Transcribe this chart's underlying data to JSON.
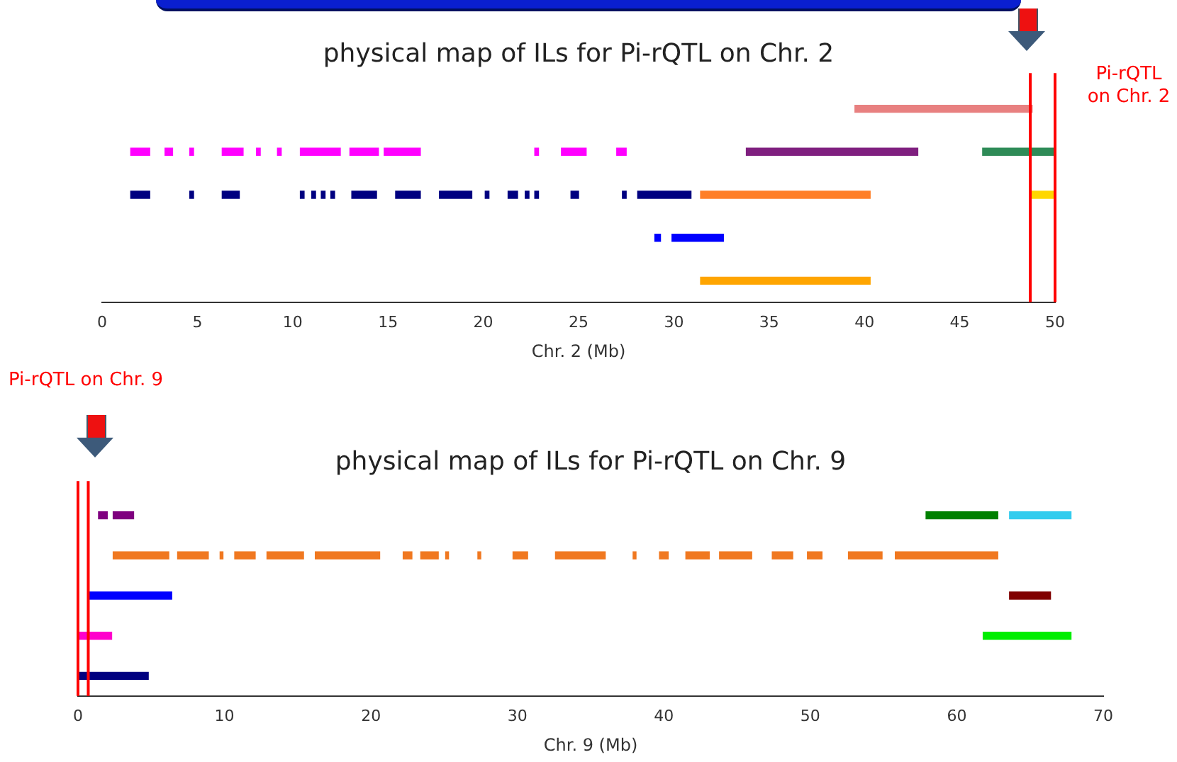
{
  "chart_data": [
    {
      "type": "bar",
      "orientation": "horizontal",
      "title": "physical map of ILs for Pi-rQTL on Chr. 2",
      "xlabel": "Chr. 2 (Mb)",
      "categories": [
        null,
        null,
        null,
        null,
        null
      ],
      "xlim": [
        0,
        50
      ],
      "xticks": [
        0,
        5,
        10,
        15,
        20,
        25,
        30,
        35,
        40,
        45,
        50
      ],
      "tick_labels": "x",
      "grid": false,
      "legend": false,
      "ref_lines": [
        {
          "axis": "x",
          "value": 48.7,
          "color": "#ff0000"
        },
        {
          "axis": "x",
          "value": 50,
          "color": "#ff0000"
        }
      ],
      "annotations": [
        "Pi-rQTL on Chr. 2"
      ],
      "series": [
        {
          "color": "#e88080",
          "base": [
            39.5,
            null,
            null,
            null,
            null
          ],
          "values": [
            9.3,
            null,
            null,
            null,
            null
          ]
        },
        {
          "color": "#ff00ff",
          "base": [
            null,
            1.5,
            null,
            null,
            null
          ],
          "values": [
            null,
            1.0,
            null,
            null,
            null
          ]
        },
        {
          "color": "#ff00ff",
          "base": [
            null,
            3.3,
            null,
            null,
            null
          ],
          "values": [
            null,
            0.4,
            null,
            null,
            null
          ]
        },
        {
          "color": "#ff00ff",
          "base": [
            null,
            4.6,
            null,
            null,
            null
          ],
          "values": [
            null,
            0.2,
            null,
            null,
            null
          ]
        },
        {
          "color": "#ff00ff",
          "base": [
            null,
            6.3,
            null,
            null,
            null
          ],
          "values": [
            null,
            1.1,
            null,
            null,
            null
          ]
        },
        {
          "color": "#ff00ff",
          "base": [
            null,
            8.1,
            null,
            null,
            null
          ],
          "values": [
            null,
            0.2,
            null,
            null,
            null
          ]
        },
        {
          "color": "#ff00ff",
          "base": [
            null,
            9.2,
            null,
            null,
            null
          ],
          "values": [
            null,
            0.2,
            null,
            null,
            null
          ]
        },
        {
          "color": "#ff00ff",
          "base": [
            null,
            10.4,
            null,
            null,
            null
          ],
          "values": [
            null,
            2.1,
            null,
            null,
            null
          ]
        },
        {
          "color": "#ff00ff",
          "base": [
            null,
            13.0,
            null,
            null,
            null
          ],
          "values": [
            null,
            1.5,
            null,
            null,
            null
          ]
        },
        {
          "color": "#ff00ff",
          "base": [
            null,
            14.8,
            null,
            null,
            null
          ],
          "values": [
            null,
            1.9,
            null,
            null,
            null
          ]
        },
        {
          "color": "#ff00ff",
          "base": [
            null,
            22.7,
            null,
            null,
            null
          ],
          "values": [
            null,
            0.2,
            null,
            null,
            null
          ]
        },
        {
          "color": "#ff00ff",
          "base": [
            null,
            24.1,
            null,
            null,
            null
          ],
          "values": [
            null,
            1.3,
            null,
            null,
            null
          ]
        },
        {
          "color": "#ff00ff",
          "base": [
            null,
            27.0,
            null,
            null,
            null
          ],
          "values": [
            null,
            0.5,
            null,
            null,
            null
          ]
        },
        {
          "color": "#7f1f7f",
          "base": [
            null,
            33.8,
            null,
            null,
            null
          ],
          "values": [
            null,
            9.0,
            null,
            null,
            null
          ]
        },
        {
          "color": "#2e8b57",
          "base": [
            null,
            46.2,
            null,
            null,
            null
          ],
          "values": [
            null,
            3.8,
            null,
            null,
            null
          ]
        },
        {
          "color": "#000080",
          "base": [
            null,
            null,
            1.5,
            null,
            null
          ],
          "values": [
            null,
            null,
            1.0,
            null,
            null
          ]
        },
        {
          "color": "#000080",
          "base": [
            null,
            null,
            4.6,
            null,
            null
          ],
          "values": [
            null,
            null,
            0.2,
            null,
            null
          ]
        },
        {
          "color": "#000080",
          "base": [
            null,
            null,
            6.3,
            null,
            null
          ],
          "values": [
            null,
            null,
            0.9,
            null,
            null
          ]
        },
        {
          "color": "#000080",
          "base": [
            null,
            null,
            10.4,
            null,
            null
          ],
          "values": [
            null,
            null,
            0.2,
            null,
            null
          ]
        },
        {
          "color": "#000080",
          "base": [
            null,
            null,
            11.0,
            null,
            null
          ],
          "values": [
            null,
            null,
            0.2,
            null,
            null
          ]
        },
        {
          "color": "#000080",
          "base": [
            null,
            null,
            11.5,
            null,
            null
          ],
          "values": [
            null,
            null,
            0.2,
            null,
            null
          ]
        },
        {
          "color": "#000080",
          "base": [
            null,
            null,
            12.0,
            null,
            null
          ],
          "values": [
            null,
            null,
            0.2,
            null,
            null
          ]
        },
        {
          "color": "#000080",
          "base": [
            null,
            null,
            13.1,
            null,
            null
          ],
          "values": [
            null,
            null,
            1.3,
            null,
            null
          ]
        },
        {
          "color": "#000080",
          "base": [
            null,
            null,
            15.4,
            null,
            null
          ],
          "values": [
            null,
            null,
            1.3,
            null,
            null
          ]
        },
        {
          "color": "#000080",
          "base": [
            null,
            null,
            17.7,
            null,
            null
          ],
          "values": [
            null,
            null,
            1.7,
            null,
            null
          ]
        },
        {
          "color": "#000080",
          "base": [
            null,
            null,
            20.1,
            null,
            null
          ],
          "values": [
            null,
            null,
            0.2,
            null,
            null
          ]
        },
        {
          "color": "#000080",
          "base": [
            null,
            null,
            21.3,
            null,
            null
          ],
          "values": [
            null,
            null,
            0.5,
            null,
            null
          ]
        },
        {
          "color": "#000080",
          "base": [
            null,
            null,
            22.2,
            null,
            null
          ],
          "values": [
            null,
            null,
            0.2,
            null,
            null
          ]
        },
        {
          "color": "#000080",
          "base": [
            null,
            null,
            22.7,
            null,
            null
          ],
          "values": [
            null,
            null,
            0.2,
            null,
            null
          ]
        },
        {
          "color": "#000080",
          "base": [
            null,
            null,
            24.6,
            null,
            null
          ],
          "values": [
            null,
            null,
            0.4,
            null,
            null
          ]
        },
        {
          "color": "#000080",
          "base": [
            null,
            null,
            27.3,
            null,
            null
          ],
          "values": [
            null,
            null,
            0.2,
            null,
            null
          ]
        },
        {
          "color": "#000080",
          "base": [
            null,
            null,
            28.1,
            null,
            null
          ],
          "values": [
            null,
            null,
            2.8,
            null,
            null
          ]
        },
        {
          "color": "#ff7f27",
          "base": [
            null,
            null,
            31.4,
            null,
            null
          ],
          "values": [
            null,
            null,
            8.9,
            null,
            null
          ]
        },
        {
          "color": "#ffd700",
          "base": [
            null,
            null,
            48.7,
            null,
            null
          ],
          "values": [
            null,
            null,
            1.3,
            null,
            null
          ]
        },
        {
          "color": "#0000ff",
          "base": [
            null,
            null,
            null,
            29.0,
            null
          ],
          "values": [
            null,
            null,
            null,
            0.3,
            null
          ]
        },
        {
          "color": "#0000ff",
          "base": [
            null,
            null,
            null,
            29.9,
            null
          ],
          "values": [
            null,
            null,
            null,
            2.7,
            null
          ]
        },
        {
          "color": "#ffa500",
          "base": [
            null,
            null,
            null,
            null,
            31.4
          ],
          "values": [
            null,
            null,
            null,
            null,
            8.9
          ]
        }
      ]
    },
    {
      "type": "bar",
      "orientation": "horizontal",
      "title": "physical map of ILs for Pi-rQTL on Chr. 9",
      "xlabel": "Chr. 9 (Mb)",
      "categories": [
        null,
        null,
        null,
        null,
        null
      ],
      "xlim": [
        0,
        70
      ],
      "xticks": [
        0,
        10,
        20,
        30,
        40,
        50,
        60,
        70
      ],
      "tick_labels": "x",
      "grid": false,
      "legend": false,
      "ref_lines": [
        {
          "axis": "x",
          "value": 0,
          "color": "#ff0000"
        },
        {
          "axis": "x",
          "value": 0.7,
          "color": "#ff0000"
        }
      ],
      "annotations": [
        "Pi-rQTL on Chr. 9"
      ],
      "series": [
        {
          "color": "#7f007f",
          "base": [
            1.4,
            null,
            null,
            null,
            null
          ],
          "values": [
            0.6,
            null,
            null,
            null,
            null
          ]
        },
        {
          "color": "#7f007f",
          "base": [
            2.4,
            null,
            null,
            null,
            null
          ],
          "values": [
            1.4,
            null,
            null,
            null,
            null
          ]
        },
        {
          "color": "#008000",
          "base": [
            57.9,
            null,
            null,
            null,
            null
          ],
          "values": [
            4.9,
            null,
            null,
            null,
            null
          ]
        },
        {
          "color": "#33ccee",
          "base": [
            63.6,
            null,
            null,
            null,
            null
          ],
          "values": [
            4.2,
            null,
            null,
            null,
            null
          ]
        },
        {
          "color": "#f07820",
          "base": [
            null,
            2.4,
            null,
            null,
            null
          ],
          "values": [
            null,
            3.8,
            null,
            null,
            null
          ]
        },
        {
          "color": "#f07820",
          "base": [
            null,
            6.8,
            null,
            null,
            null
          ],
          "values": [
            null,
            2.1,
            null,
            null,
            null
          ]
        },
        {
          "color": "#f07820",
          "base": [
            null,
            9.7,
            null,
            null,
            null
          ],
          "values": [
            null,
            0.2,
            null,
            null,
            null
          ]
        },
        {
          "color": "#f07820",
          "base": [
            null,
            10.7,
            null,
            null,
            null
          ],
          "values": [
            null,
            1.4,
            null,
            null,
            null
          ]
        },
        {
          "color": "#f07820",
          "base": [
            null,
            12.9,
            null,
            null,
            null
          ],
          "values": [
            null,
            2.5,
            null,
            null,
            null
          ]
        },
        {
          "color": "#f07820",
          "base": [
            null,
            16.2,
            null,
            null,
            null
          ],
          "values": [
            null,
            4.4,
            null,
            null,
            null
          ]
        },
        {
          "color": "#f07820",
          "base": [
            null,
            22.2,
            null,
            null,
            null
          ],
          "values": [
            null,
            0.6,
            null,
            null,
            null
          ]
        },
        {
          "color": "#f07820",
          "base": [
            null,
            23.4,
            null,
            null,
            null
          ],
          "values": [
            null,
            1.2,
            null,
            null,
            null
          ]
        },
        {
          "color": "#f07820",
          "base": [
            null,
            25.1,
            null,
            null,
            null
          ],
          "values": [
            null,
            0.2,
            null,
            null,
            null
          ]
        },
        {
          "color": "#f07820",
          "base": [
            null,
            27.3,
            null,
            null,
            null
          ],
          "values": [
            null,
            0.2,
            null,
            null,
            null
          ]
        },
        {
          "color": "#f07820",
          "base": [
            null,
            29.7,
            null,
            null,
            null
          ],
          "values": [
            null,
            1.0,
            null,
            null,
            null
          ]
        },
        {
          "color": "#f07820",
          "base": [
            null,
            32.6,
            null,
            null,
            null
          ],
          "values": [
            null,
            3.4,
            null,
            null,
            null
          ]
        },
        {
          "color": "#f07820",
          "base": [
            null,
            37.9,
            null,
            null,
            null
          ],
          "values": [
            null,
            0.2,
            null,
            null,
            null
          ]
        },
        {
          "color": "#f07820",
          "base": [
            null,
            39.7,
            null,
            null,
            null
          ],
          "values": [
            null,
            0.6,
            null,
            null,
            null
          ]
        },
        {
          "color": "#f07820",
          "base": [
            null,
            41.5,
            null,
            null,
            null
          ],
          "values": [
            null,
            1.6,
            null,
            null,
            null
          ]
        },
        {
          "color": "#f07820",
          "base": [
            null,
            43.8,
            null,
            null,
            null
          ],
          "values": [
            null,
            2.2,
            null,
            null,
            null
          ]
        },
        {
          "color": "#f07820",
          "base": [
            null,
            47.4,
            null,
            null,
            null
          ],
          "values": [
            null,
            1.4,
            null,
            null,
            null
          ]
        },
        {
          "color": "#f07820",
          "base": [
            null,
            49.8,
            null,
            null,
            null
          ],
          "values": [
            null,
            1.0,
            null,
            null,
            null
          ]
        },
        {
          "color": "#f07820",
          "base": [
            null,
            52.6,
            null,
            null,
            null
          ],
          "values": [
            null,
            2.3,
            null,
            null,
            null
          ]
        },
        {
          "color": "#f07820",
          "base": [
            null,
            55.8,
            null,
            null,
            null
          ],
          "values": [
            null,
            7.0,
            null,
            null,
            null
          ]
        },
        {
          "color": "#0000ff",
          "base": [
            null,
            null,
            0.8,
            null,
            null
          ],
          "values": [
            null,
            null,
            5.6,
            null,
            null
          ]
        },
        {
          "color": "#800000",
          "base": [
            null,
            null,
            63.6,
            null,
            null
          ],
          "values": [
            null,
            null,
            2.8,
            null,
            null
          ]
        },
        {
          "color": "#ff00cc",
          "base": [
            null,
            null,
            null,
            0,
            null
          ],
          "values": [
            null,
            null,
            null,
            2.3,
            null
          ]
        },
        {
          "color": "#00ee00",
          "base": [
            null,
            null,
            null,
            61.8,
            null
          ],
          "values": [
            null,
            null,
            null,
            6.0,
            null
          ]
        },
        {
          "color": "#000080",
          "base": [
            null,
            null,
            null,
            null,
            0
          ],
          "values": [
            null,
            null,
            null,
            null,
            4.8
          ]
        }
      ]
    }
  ]
}
